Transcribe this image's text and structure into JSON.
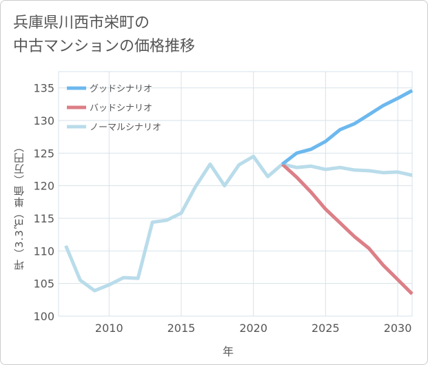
{
  "title_line1": "兵庫県川西市栄町の",
  "title_line2": "中古マンションの価格推移",
  "chart_data": {
    "type": "line",
    "xlabel": "年",
    "ylabel": "坪（3.3㎡）単価（万円）",
    "xlim": [
      2006.5,
      2031
    ],
    "ylim": [
      100,
      137.5
    ],
    "xticks": [
      2010,
      2015,
      2020,
      2025,
      2030
    ],
    "yticks": [
      100,
      105,
      110,
      115,
      120,
      125,
      130,
      135
    ],
    "legend_position": "top-left",
    "series": [
      {
        "name": "グッドシナリオ",
        "color": "#6cb8ee",
        "x": [
          2022,
          2023,
          2024,
          2025,
          2026,
          2027,
          2028,
          2029,
          2030,
          2031
        ],
        "y": [
          123.3,
          125.0,
          125.6,
          126.8,
          128.6,
          129.5,
          130.9,
          132.3,
          133.4,
          134.6
        ]
      },
      {
        "name": "バッドシナリオ",
        "color": "#dc7f87",
        "x": [
          2022,
          2023,
          2024,
          2025,
          2026,
          2027,
          2028,
          2029,
          2030,
          2031
        ],
        "y": [
          123.3,
          121.3,
          119.0,
          116.4,
          114.3,
          112.2,
          110.4,
          107.8,
          105.6,
          103.4
        ]
      },
      {
        "name": "ノーマルシナリオ",
        "color": "#b9dcea",
        "x": [
          2007,
          2008,
          2009,
          2010,
          2011,
          2012,
          2013,
          2014,
          2015,
          2016,
          2017,
          2018,
          2019,
          2020,
          2021,
          2022,
          2023,
          2024,
          2025,
          2026,
          2027,
          2028,
          2029,
          2030,
          2031
        ],
        "y": [
          110.8,
          105.5,
          103.9,
          104.8,
          105.9,
          105.8,
          114.4,
          114.7,
          115.8,
          119.9,
          123.3,
          120.0,
          123.2,
          124.5,
          121.4,
          123.3,
          122.8,
          123.0,
          122.5,
          122.8,
          122.4,
          122.3,
          122.0,
          122.1,
          121.6
        ]
      }
    ]
  }
}
